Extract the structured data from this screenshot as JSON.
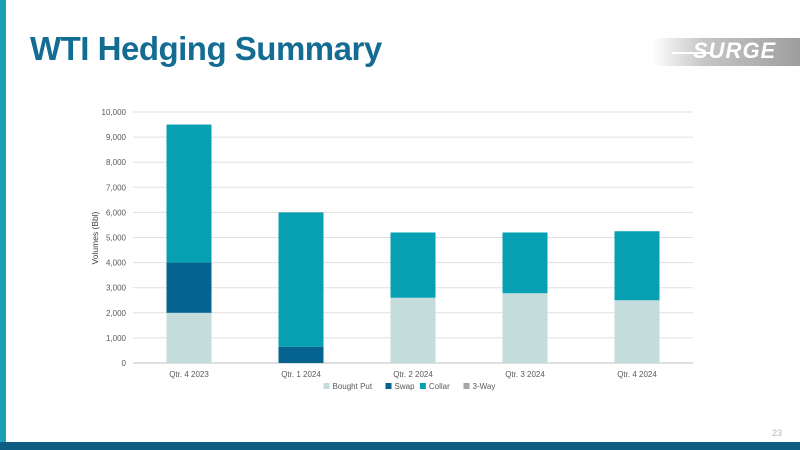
{
  "slide": {
    "title": "WTI Hedging Summary",
    "logo_text": "SURGE",
    "page_number": "23",
    "accent_color": "#1aa0b4",
    "footer_color": "#0f5c83",
    "title_color": "#136c92"
  },
  "chart_data": {
    "type": "bar",
    "stacked": true,
    "title": "",
    "xlabel": "",
    "ylabel": "Volumes (Bbl)",
    "ylim": [
      0,
      10000
    ],
    "yticks": [
      0,
      1000,
      2000,
      3000,
      4000,
      5000,
      6000,
      7000,
      8000,
      9000,
      10000
    ],
    "ytick_labels": [
      "0",
      "1,000",
      "2,000",
      "3,000",
      "4,000",
      "5,000",
      "6,000",
      "7,000",
      "8,000",
      "9,000",
      "10,000"
    ],
    "grid": true,
    "legend_position": "bottom",
    "categories": [
      "Qtr. 4 2023",
      "Qtr. 1 2024",
      "Qtr. 2 2024",
      "Qtr. 3 2024",
      "Qtr. 4 2024"
    ],
    "series": [
      {
        "name": "Bought Put",
        "color": "#c5dcdc",
        "values": [
          2000,
          0,
          2600,
          2780,
          2500
        ]
      },
      {
        "name": "Swap",
        "color": "#06628e",
        "values": [
          2000,
          650,
          0,
          0,
          0
        ]
      },
      {
        "name": "Collar",
        "color": "#07a0b2",
        "values": [
          5500,
          5350,
          2600,
          2420,
          2750
        ]
      },
      {
        "name": "3-Way",
        "color": "#a6a6a6",
        "values": [
          0,
          0,
          0,
          0,
          0
        ]
      }
    ]
  }
}
